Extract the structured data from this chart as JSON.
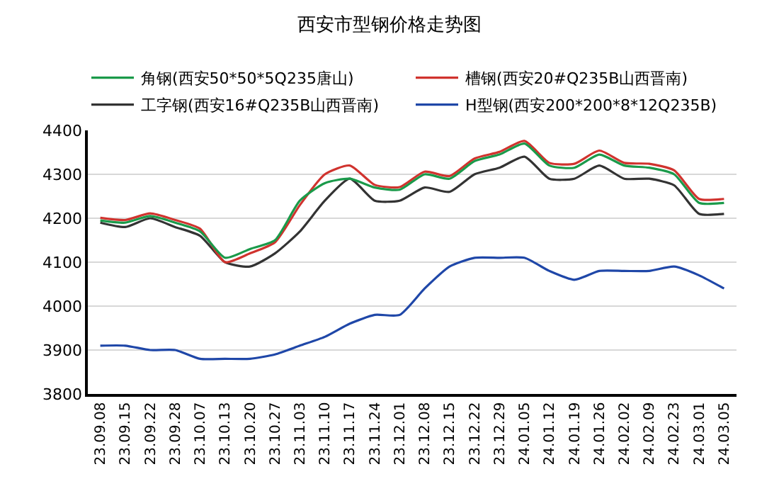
{
  "chart_data": {
    "type": "line",
    "title": "西安市型钢价格走势图",
    "categories": [
      "23.09.08",
      "23.09.15",
      "23.09.22",
      "23.09.28",
      "23.10.07",
      "23.10.13",
      "23.10.20",
      "23.10.27",
      "23.11.03",
      "23.11.10",
      "23.11.17",
      "23.11.24",
      "23.12.01",
      "23.12.08",
      "23.12.15",
      "23.12.22",
      "23.12.29",
      "24.01.05",
      "24.01.12",
      "24.01.19",
      "24.01.26",
      "24.02.02",
      "24.02.09",
      "24.02.23",
      "24.03.01",
      "24.03.05"
    ],
    "series": [
      {
        "name": "角钢(西安50*50*5Q235唐山)",
        "color": "#1a9a4a",
        "values": [
          4195,
          4190,
          4205,
          4190,
          4170,
          4110,
          4130,
          4150,
          4240,
          4280,
          4290,
          4270,
          4265,
          4300,
          4290,
          4330,
          4345,
          4370,
          4320,
          4315,
          4345,
          4320,
          4315,
          4300,
          4235,
          4235
        ]
      },
      {
        "name": "槽钢(西安20#Q235B山西晋南)",
        "color": "#d0332e",
        "values": [
          4201,
          4196,
          4211,
          4196,
          4176,
          4100,
          4120,
          4145,
          4230,
          4300,
          4320,
          4276,
          4271,
          4306,
          4296,
          4336,
          4351,
          4376,
          4326,
          4324,
          4354,
          4326,
          4324,
          4309,
          4244,
          4244
        ]
      },
      {
        "name": "工字钢(西安16#Q235B山西晋南)",
        "color": "#333333",
        "values": [
          4190,
          4180,
          4200,
          4180,
          4160,
          4100,
          4090,
          4120,
          4170,
          4240,
          4290,
          4240,
          4240,
          4270,
          4260,
          4300,
          4315,
          4340,
          4290,
          4290,
          4320,
          4290,
          4290,
          4275,
          4210,
          4210
        ]
      },
      {
        "name": "H型钢(西安200*200*8*12Q235B)",
        "color": "#1f47a8",
        "values": [
          3910,
          3910,
          3900,
          3900,
          3880,
          3880,
          3880,
          3890,
          3910,
          3930,
          3960,
          3980,
          3980,
          4040,
          4090,
          4110,
          4110,
          4110,
          4080,
          4060,
          4080,
          4080,
          4080,
          4090,
          4070,
          4040
        ]
      }
    ],
    "ylim": [
      3800,
      4400
    ],
    "yticks": [
      3800,
      3900,
      4000,
      4100,
      4200,
      4300,
      4400
    ],
    "grid": "y",
    "legend": "top"
  }
}
